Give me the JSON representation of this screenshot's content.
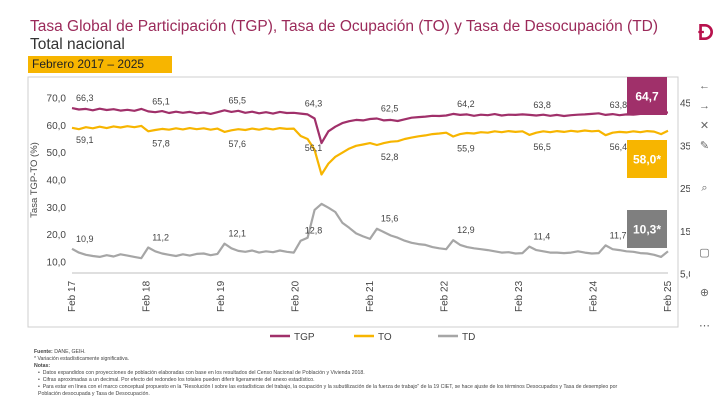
{
  "header": {
    "title": "Tasa Global de Participación (TGP), Tasa de Ocupación (TO) y Tasa de Desocupación (TD)",
    "subtitle": "Total nacional",
    "period": "Febrero 2017 – 2025"
  },
  "chart_data": {
    "type": "line",
    "x_ticks": [
      "Feb 17",
      "Feb 18",
      "Feb 19",
      "Feb 20",
      "Feb 21",
      "Feb 22",
      "Feb 23",
      "Feb 24",
      "Feb 25"
    ],
    "ylabel_left": "Tasa TGP-TO (%)",
    "ylabel_right": "Tasa TD (%)",
    "ylim_left": [
      10,
      70
    ],
    "yticks_left": [
      "70,0",
      "60,0",
      "50,0",
      "40,0",
      "30,0",
      "20,0",
      "10,0"
    ],
    "yticks_right": [
      "45,0",
      "35,0",
      "25,0",
      "15,0",
      "5,0"
    ],
    "legend": [
      "TGP",
      "TO",
      "TD"
    ],
    "legend_position": "bottom",
    "series": [
      {
        "name": "TGP",
        "color": "#a0306a",
        "axis": "left",
        "values": [
          66.3,
          65.8,
          66.0,
          65.5,
          66.1,
          65.6,
          65.9,
          65.4,
          65.7,
          65.3,
          66.0,
          65.1,
          64.8,
          65.2,
          64.5,
          65.0,
          64.6,
          64.9,
          64.4,
          64.7,
          64.2,
          64.8,
          65.5,
          64.9,
          65.3,
          64.6,
          65.0,
          64.4,
          64.8,
          64.3,
          64.9,
          64.5,
          64.6,
          64.3,
          64.0,
          62.5,
          53.5,
          57.8,
          59.5,
          60.8,
          61.5,
          62.0,
          61.8,
          62.3,
          62.5,
          61.8,
          62.0,
          61.6,
          62.2,
          62.8,
          63.0,
          63.2,
          63.5,
          63.4,
          63.6,
          64.2,
          63.8,
          64.0,
          63.5,
          63.9,
          63.7,
          64.1,
          63.6,
          63.9,
          63.8,
          64.0,
          63.8,
          63.6,
          63.9,
          63.5,
          63.8,
          63.4,
          63.7,
          63.9,
          64.0,
          64.2,
          64.4,
          63.8,
          64.1,
          63.7,
          64.0,
          63.9,
          64.2,
          64.5,
          64.3,
          64.6,
          64.7
        ],
        "end_label": "64,7",
        "point_labels": [
          {
            "i": 0,
            "text": "66,3"
          },
          {
            "i": 11,
            "text": "65,1"
          },
          {
            "i": 22,
            "text": "65,5"
          },
          {
            "i": 33,
            "text": "64,3"
          },
          {
            "i": 44,
            "text": "62,5"
          },
          {
            "i": 55,
            "text": "64,2"
          },
          {
            "i": 66,
            "text": "63,8"
          },
          {
            "i": 77,
            "text": "63,8"
          }
        ]
      },
      {
        "name": "TO",
        "color": "#f7b500",
        "axis": "left",
        "values": [
          59.1,
          58.6,
          59.3,
          58.9,
          59.5,
          59.0,
          59.6,
          59.2,
          59.7,
          59.3,
          59.8,
          57.8,
          58.3,
          58.7,
          58.4,
          58.9,
          58.5,
          59.0,
          58.6,
          58.9,
          58.4,
          58.8,
          57.6,
          58.2,
          58.6,
          58.3,
          58.8,
          58.4,
          58.9,
          58.5,
          59.0,
          58.7,
          58.8,
          56.1,
          55.0,
          51.0,
          42.0,
          46.0,
          48.5,
          50.0,
          51.5,
          52.5,
          53.0,
          53.5,
          52.8,
          53.5,
          54.0,
          54.2,
          55.0,
          55.5,
          56.0,
          56.3,
          56.8,
          57.0,
          57.3,
          55.9,
          56.8,
          57.2,
          57.0,
          57.5,
          57.3,
          57.8,
          57.5,
          57.9,
          57.6,
          57.8,
          56.5,
          57.3,
          57.8,
          57.5,
          57.9,
          57.6,
          58.0,
          57.7,
          58.1,
          57.8,
          58.0,
          56.4,
          57.3,
          57.6,
          57.4,
          57.8,
          57.5,
          57.9,
          57.7,
          56.8,
          58.0
        ],
        "end_label": "58,0*",
        "point_labels": [
          {
            "i": 0,
            "text": "59,1"
          },
          {
            "i": 11,
            "text": "57,8"
          },
          {
            "i": 22,
            "text": "57,6"
          },
          {
            "i": 33,
            "text": "56,1"
          },
          {
            "i": 44,
            "text": "52,8"
          },
          {
            "i": 55,
            "text": "55,9"
          },
          {
            "i": 66,
            "text": "56,5"
          },
          {
            "i": 77,
            "text": "56,4"
          }
        ]
      },
      {
        "name": "TD",
        "color": "#a6a6a6",
        "axis": "right",
        "values": [
          10.9,
          10.0,
          9.5,
          9.2,
          9.0,
          9.4,
          9.1,
          9.6,
          9.3,
          9.0,
          8.7,
          11.2,
          10.3,
          9.8,
          9.5,
          9.2,
          9.6,
          9.3,
          9.7,
          9.8,
          9.4,
          9.7,
          12.1,
          11.0,
          10.4,
          10.2,
          10.5,
          10.0,
          10.3,
          10.1,
          10.5,
          10.2,
          10.0,
          12.8,
          13.5,
          20.0,
          21.4,
          20.5,
          19.5,
          17.0,
          15.8,
          14.5,
          13.8,
          13.2,
          15.6,
          14.8,
          14.0,
          13.5,
          12.8,
          12.3,
          12.0,
          11.8,
          11.3,
          11.0,
          10.8,
          12.9,
          11.8,
          11.3,
          11.0,
          10.8,
          10.6,
          10.3,
          10.0,
          10.1,
          9.8,
          9.9,
          11.4,
          10.6,
          10.3,
          10.0,
          10.0,
          9.9,
          10.0,
          10.3,
          10.0,
          9.8,
          9.9,
          11.7,
          10.8,
          10.6,
          10.3,
          10.2,
          9.9,
          9.8,
          9.5,
          9.0,
          10.3
        ],
        "end_label": "10,3*",
        "point_labels": [
          {
            "i": 0,
            "text": "10,9"
          },
          {
            "i": 11,
            "text": "11,2"
          },
          {
            "i": 22,
            "text": "12,1"
          },
          {
            "i": 33,
            "text": "12,8"
          },
          {
            "i": 44,
            "text": "15,6"
          },
          {
            "i": 55,
            "text": "12,9"
          },
          {
            "i": 66,
            "text": "11,4"
          },
          {
            "i": 77,
            "text": "11,7"
          }
        ]
      }
    ]
  },
  "notes": {
    "source_label": "Fuente:",
    "source_text": "DANE, GEIH.",
    "asterisk": "* Variación estadísticamente significativa.",
    "notes_label": "Notas:",
    "items": [
      "Datos expandidos con proyecciones de población elaboradas con base en los resultados del Censo Nacional de Población y Vivienda 2018.",
      "Cifras aproximadas a un decimal. Por efecto del redondeo los totales pueden diferir ligeramente del anexo estadístico.",
      "Para estar en línea con el marco conceptual propuesto en la \"Resolución I sobre las estadísticas del trabajo, la ocupación y la subutilización de la fuerza de trabajo\" de la 19 CIET, se hace ajuste de los términos Desocupados y Tasa de desempleo por Población desocupada y Tasa de Desocupación."
    ]
  },
  "sidebar": {
    "icons": [
      "logo-icon",
      "back-arrow-icon",
      "forward-arrow-icon",
      "close-icon",
      "pen-icon",
      "search-icon",
      "page-icon",
      "zoom-icon",
      "more-icon"
    ]
  }
}
